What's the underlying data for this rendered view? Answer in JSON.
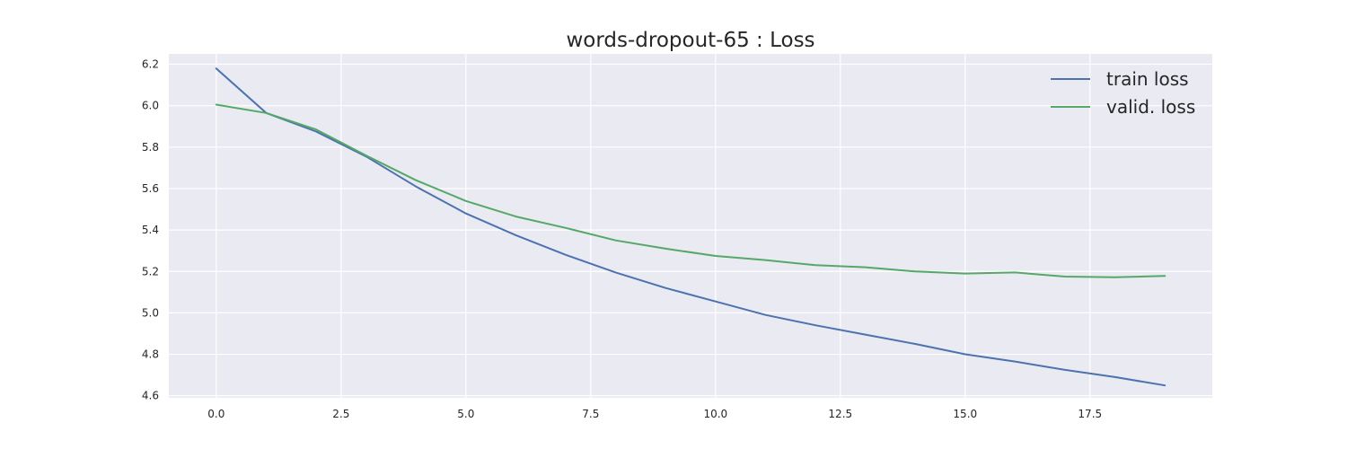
{
  "chart_data": {
    "type": "line",
    "title": "words-dropout-65 : Loss",
    "xlabel": "",
    "ylabel": "",
    "x": [
      0,
      1,
      2,
      3,
      4,
      5,
      6,
      7,
      8,
      9,
      10,
      11,
      12,
      13,
      14,
      15,
      16,
      17,
      18,
      19
    ],
    "xlim": [
      -0.95,
      19.95
    ],
    "ylim": [
      4.59,
      6.25
    ],
    "x_ticks": [
      0.0,
      2.5,
      5.0,
      7.5,
      10.0,
      12.5,
      15.0,
      17.5
    ],
    "x_tick_labels": [
      "0.0",
      "2.5",
      "5.0",
      "7.5",
      "10.0",
      "12.5",
      "15.0",
      "17.5"
    ],
    "y_ticks": [
      4.6,
      4.8,
      5.0,
      5.2,
      5.4,
      5.6,
      5.8,
      6.0,
      6.2
    ],
    "y_tick_labels": [
      "4.6",
      "4.8",
      "5.0",
      "5.2",
      "5.4",
      "5.6",
      "5.8",
      "6.0",
      "6.2"
    ],
    "grid": true,
    "legend_position": "top-right",
    "series": [
      {
        "name": "train loss",
        "color": "#4c72b0",
        "values": [
          6.18,
          5.965,
          5.875,
          5.755,
          5.61,
          5.48,
          5.375,
          5.28,
          5.195,
          5.12,
          5.055,
          4.99,
          4.94,
          4.895,
          4.85,
          4.8,
          4.765,
          4.725,
          4.69,
          4.65
        ]
      },
      {
        "name": "valid. loss",
        "color": "#55a868",
        "values": [
          6.005,
          5.965,
          5.885,
          5.76,
          5.64,
          5.54,
          5.465,
          5.41,
          5.35,
          5.31,
          5.275,
          5.255,
          5.23,
          5.22,
          5.2,
          5.19,
          5.195,
          5.175,
          5.172,
          5.178
        ]
      }
    ]
  },
  "colors": {
    "plot_background": "#eaeaf2",
    "grid": "#ffffff",
    "text": "#262626"
  }
}
